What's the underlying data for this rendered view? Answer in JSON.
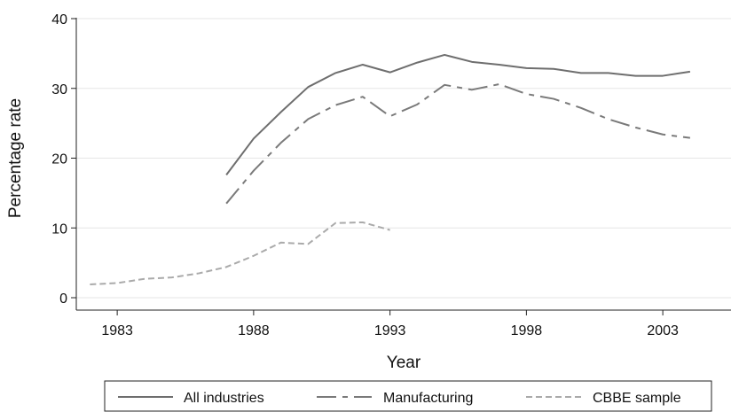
{
  "chart_data": {
    "type": "line",
    "title": "",
    "xlabel": "Year",
    "ylabel": "Percentage rate",
    "xlim": [
      1981.5,
      2005.5
    ],
    "ylim": [
      0,
      40
    ],
    "xticks": [
      1983,
      1988,
      1993,
      1998,
      2003
    ],
    "xtick_labels": [
      "1983",
      "1988",
      "1993",
      "1998",
      "2003"
    ],
    "yticks": [
      0,
      10,
      20,
      30,
      40
    ],
    "ytick_labels": [
      "0",
      "10",
      "20",
      "30",
      "40"
    ],
    "grid": "horizontal",
    "legend_position": "bottom",
    "series": [
      {
        "name": "All industries",
        "color": "#6e6e6e",
        "dash": "solid",
        "x": [
          1987,
          1988,
          1989,
          1990,
          1991,
          1992,
          1993,
          1994,
          1995,
          1996,
          1997,
          1998,
          1999,
          2000,
          2001,
          2002,
          2003,
          2004
        ],
        "y": [
          17.6,
          22.8,
          26.6,
          30.2,
          32.2,
          33.4,
          32.3,
          33.7,
          34.8,
          33.8,
          33.4,
          32.9,
          32.8,
          32.2,
          32.2,
          31.8,
          31.8,
          32.4
        ]
      },
      {
        "name": "Manufacturing",
        "color": "#7a7a7a",
        "dash": "longdash",
        "x": [
          1987,
          1988,
          1989,
          1990,
          1991,
          1992,
          1993,
          1994,
          1995,
          1996,
          1997,
          1998,
          1999,
          2000,
          2001,
          2002,
          2003,
          2004
        ],
        "y": [
          13.5,
          18.2,
          22.2,
          25.6,
          27.6,
          28.8,
          26.0,
          27.7,
          30.5,
          29.8,
          30.6,
          29.2,
          28.5,
          27.2,
          25.6,
          24.4,
          23.4,
          22.9
        ]
      },
      {
        "name": "CBBE sample",
        "color": "#aaaaaa",
        "dash": "shortdash",
        "x": [
          1982,
          1983,
          1984,
          1985,
          1986,
          1987,
          1988,
          1989,
          1990,
          1991,
          1992,
          1993
        ],
        "y": [
          1.9,
          2.1,
          2.7,
          2.9,
          3.5,
          4.4,
          6.0,
          7.9,
          7.7,
          10.7,
          10.8,
          9.7
        ]
      }
    ]
  }
}
